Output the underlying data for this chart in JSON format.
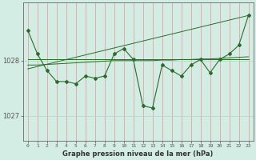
{
  "title": "Graphe pression niveau de la mer (hPa)",
  "bg_color": "#d4ede4",
  "line_color": "#2d6a2d",
  "x_ticks": [
    0,
    1,
    2,
    3,
    4,
    5,
    6,
    7,
    8,
    9,
    10,
    11,
    12,
    13,
    14,
    15,
    16,
    17,
    18,
    19,
    20,
    21,
    22,
    23
  ],
  "ylim": [
    1026.55,
    1029.05
  ],
  "yticks": [
    1027,
    1028
  ],
  "pressure_data": [
    1028.55,
    1028.12,
    1027.82,
    1027.62,
    1027.62,
    1027.58,
    1027.72,
    1027.68,
    1027.72,
    1028.12,
    1028.22,
    1028.02,
    1027.18,
    1027.14,
    1027.92,
    1027.82,
    1027.72,
    1027.92,
    1028.02,
    1027.78,
    1028.02,
    1028.12,
    1028.28,
    1028.82
  ],
  "smooth_line": [
    1027.92,
    1027.92,
    1027.93,
    1027.94,
    1027.95,
    1027.96,
    1027.97,
    1027.98,
    1027.99,
    1028.0,
    1028.0,
    1028.0,
    1028.0,
    1028.0,
    1028.01,
    1028.01,
    1028.02,
    1028.02,
    1028.03,
    1028.03,
    1028.04,
    1028.05,
    1028.06,
    1028.07
  ],
  "trend_line": [
    [
      0,
      1027.85
    ],
    [
      23,
      1028.82
    ]
  ],
  "flat_line_y": 1028.02,
  "figsize": [
    3.2,
    2.0
  ],
  "dpi": 100
}
